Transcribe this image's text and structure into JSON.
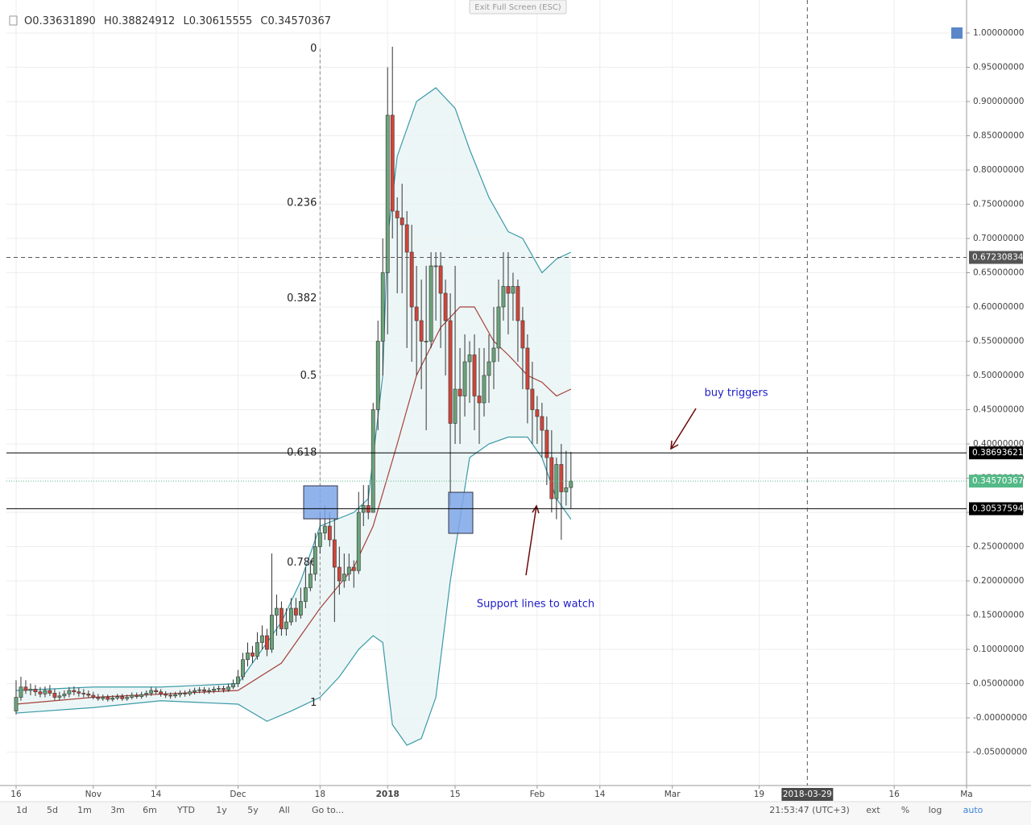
{
  "toolbar_top": {
    "ohlc": [
      {
        "label": "O",
        "value": "0.33631890"
      },
      {
        "label": "H",
        "value": "0.38824912"
      },
      {
        "label": "L",
        "value": "0.30615555"
      },
      {
        "label": "C",
        "value": "0.34570367"
      }
    ],
    "exit": "Exit Full Screen (ESC)"
  },
  "chart_data": {
    "type": "candlestick",
    "x": [
      "2017-10-16",
      "2017-10-17",
      "2017-10-18",
      "2017-10-19",
      "2017-10-20",
      "2017-10-21",
      "2017-10-22",
      "2017-10-23",
      "2017-10-24",
      "2017-10-25",
      "2017-10-26",
      "2017-10-27",
      "2017-10-28",
      "2017-10-29",
      "2017-10-30",
      "2017-10-31",
      "2017-11-01",
      "2017-11-02",
      "2017-11-03",
      "2017-11-04",
      "2017-11-05",
      "2017-11-06",
      "2017-11-07",
      "2017-11-08",
      "2017-11-09",
      "2017-11-10",
      "2017-11-11",
      "2017-11-12",
      "2017-11-13",
      "2017-11-14",
      "2017-11-15",
      "2017-11-16",
      "2017-11-17",
      "2017-11-18",
      "2017-11-19",
      "2017-11-20",
      "2017-11-21",
      "2017-11-22",
      "2017-11-23",
      "2017-11-24",
      "2017-11-25",
      "2017-11-26",
      "2017-11-27",
      "2017-11-28",
      "2017-11-29",
      "2017-11-30",
      "2017-12-01",
      "2017-12-02",
      "2017-12-03",
      "2017-12-04",
      "2017-12-05",
      "2017-12-06",
      "2017-12-07",
      "2017-12-08",
      "2017-12-09",
      "2017-12-10",
      "2017-12-11",
      "2017-12-12",
      "2017-12-13",
      "2017-12-14",
      "2017-12-15",
      "2017-12-16",
      "2017-12-17",
      "2017-12-18",
      "2017-12-19",
      "2017-12-20",
      "2017-12-21",
      "2017-12-22",
      "2017-12-23",
      "2017-12-24",
      "2017-12-25",
      "2017-12-26",
      "2017-12-27",
      "2017-12-28",
      "2017-12-29",
      "2017-12-30",
      "2017-12-31",
      "2018-01-01",
      "2018-01-02",
      "2018-01-03",
      "2018-01-04",
      "2018-01-05",
      "2018-01-06",
      "2018-01-07",
      "2018-01-08",
      "2018-01-09",
      "2018-01-10",
      "2018-01-11",
      "2018-01-12",
      "2018-01-13",
      "2018-01-14",
      "2018-01-15",
      "2018-01-16",
      "2018-01-17",
      "2018-01-18",
      "2018-01-19",
      "2018-01-20",
      "2018-01-21",
      "2018-01-22",
      "2018-01-23",
      "2018-01-24",
      "2018-01-25",
      "2018-01-26",
      "2018-01-27",
      "2018-01-28",
      "2018-01-29",
      "2018-01-30",
      "2018-01-31",
      "2018-02-01",
      "2018-02-02",
      "2018-02-03",
      "2018-02-04",
      "2018-02-05",
      "2018-02-06",
      "2018-02-07",
      "2018-02-08"
    ],
    "open": [
      0.01,
      0.03,
      0.045,
      0.04,
      0.042,
      0.038,
      0.035,
      0.04,
      0.036,
      0.03,
      0.032,
      0.035,
      0.04,
      0.038,
      0.036,
      0.035,
      0.033,
      0.03,
      0.028,
      0.03,
      0.027,
      0.029,
      0.031,
      0.028,
      0.03,
      0.033,
      0.031,
      0.034,
      0.036,
      0.04,
      0.038,
      0.035,
      0.033,
      0.032,
      0.034,
      0.036,
      0.035,
      0.038,
      0.04,
      0.041,
      0.039,
      0.04,
      0.042,
      0.043,
      0.041,
      0.045,
      0.05,
      0.06,
      0.085,
      0.095,
      0.09,
      0.11,
      0.12,
      0.1,
      0.15,
      0.16,
      0.13,
      0.14,
      0.16,
      0.15,
      0.17,
      0.19,
      0.21,
      0.25,
      0.27,
      0.28,
      0.26,
      0.22,
      0.2,
      0.21,
      0.22,
      0.215,
      0.3,
      0.31,
      0.3,
      0.45,
      0.55,
      0.65,
      0.88,
      0.74,
      0.73,
      0.72,
      0.68,
      0.6,
      0.58,
      0.55,
      0.55,
      0.66,
      0.66,
      0.62,
      0.58,
      0.43,
      0.48,
      0.47,
      0.52,
      0.53,
      0.47,
      0.46,
      0.5,
      0.52,
      0.54,
      0.6,
      0.63,
      0.62,
      0.63,
      0.58,
      0.54,
      0.48,
      0.45,
      0.44,
      0.42,
      0.38,
      0.32,
      0.37,
      0.33,
      0.3363189
    ],
    "high": [
      0.055,
      0.06,
      0.055,
      0.05,
      0.048,
      0.045,
      0.046,
      0.048,
      0.042,
      0.038,
      0.04,
      0.045,
      0.046,
      0.044,
      0.042,
      0.04,
      0.038,
      0.035,
      0.034,
      0.034,
      0.033,
      0.035,
      0.035,
      0.034,
      0.037,
      0.037,
      0.038,
      0.04,
      0.045,
      0.044,
      0.042,
      0.039,
      0.037,
      0.038,
      0.04,
      0.04,
      0.042,
      0.044,
      0.045,
      0.045,
      0.044,
      0.046,
      0.047,
      0.047,
      0.05,
      0.056,
      0.07,
      0.095,
      0.11,
      0.105,
      0.125,
      0.135,
      0.13,
      0.24,
      0.18,
      0.17,
      0.16,
      0.175,
      0.175,
      0.19,
      0.22,
      0.23,
      0.27,
      0.3,
      0.31,
      0.3,
      0.29,
      0.25,
      0.24,
      0.24,
      0.23,
      0.33,
      0.34,
      0.34,
      0.46,
      0.58,
      0.7,
      0.95,
      0.98,
      0.76,
      0.78,
      0.74,
      0.72,
      0.66,
      0.64,
      0.66,
      0.68,
      0.68,
      0.68,
      0.64,
      0.62,
      0.66,
      0.54,
      0.56,
      0.55,
      0.56,
      0.54,
      0.54,
      0.56,
      0.6,
      0.64,
      0.68,
      0.68,
      0.65,
      0.64,
      0.6,
      0.56,
      0.52,
      0.47,
      0.46,
      0.44,
      0.42,
      0.38,
      0.4,
      0.39,
      0.38824912
    ],
    "low": [
      0.005,
      0.025,
      0.035,
      0.033,
      0.032,
      0.03,
      0.03,
      0.032,
      0.026,
      0.026,
      0.028,
      0.03,
      0.033,
      0.031,
      0.03,
      0.029,
      0.027,
      0.025,
      0.025,
      0.024,
      0.024,
      0.026,
      0.025,
      0.025,
      0.027,
      0.028,
      0.028,
      0.03,
      0.032,
      0.034,
      0.031,
      0.029,
      0.028,
      0.029,
      0.03,
      0.031,
      0.032,
      0.034,
      0.036,
      0.035,
      0.035,
      0.036,
      0.038,
      0.037,
      0.038,
      0.042,
      0.045,
      0.055,
      0.075,
      0.08,
      0.085,
      0.1,
      0.09,
      0.095,
      0.12,
      0.12,
      0.12,
      0.135,
      0.14,
      0.145,
      0.16,
      0.185,
      0.2,
      0.24,
      0.26,
      0.25,
      0.14,
      0.18,
      0.19,
      0.2,
      0.19,
      0.21,
      0.28,
      0.29,
      0.3,
      0.42,
      0.5,
      0.56,
      0.7,
      0.62,
      0.62,
      0.54,
      0.52,
      0.5,
      0.48,
      0.42,
      0.54,
      0.58,
      0.54,
      0.5,
      0.31,
      0.4,
      0.4,
      0.44,
      0.46,
      0.42,
      0.4,
      0.44,
      0.46,
      0.48,
      0.52,
      0.58,
      0.56,
      0.58,
      0.52,
      0.48,
      0.43,
      0.4,
      0.4,
      0.38,
      0.34,
      0.3,
      0.29,
      0.26,
      0.31,
      0.30615555
    ],
    "close": [
      0.03,
      0.045,
      0.04,
      0.042,
      0.038,
      0.035,
      0.04,
      0.036,
      0.03,
      0.032,
      0.035,
      0.04,
      0.038,
      0.036,
      0.035,
      0.033,
      0.03,
      0.028,
      0.03,
      0.027,
      0.029,
      0.031,
      0.028,
      0.03,
      0.033,
      0.031,
      0.034,
      0.036,
      0.04,
      0.038,
      0.035,
      0.033,
      0.032,
      0.034,
      0.036,
      0.035,
      0.038,
      0.04,
      0.041,
      0.039,
      0.04,
      0.042,
      0.043,
      0.041,
      0.045,
      0.05,
      0.06,
      0.085,
      0.095,
      0.09,
      0.11,
      0.12,
      0.1,
      0.15,
      0.16,
      0.13,
      0.14,
      0.16,
      0.15,
      0.17,
      0.19,
      0.21,
      0.25,
      0.27,
      0.28,
      0.26,
      0.22,
      0.2,
      0.21,
      0.22,
      0.215,
      0.3,
      0.31,
      0.3,
      0.45,
      0.55,
      0.65,
      0.88,
      0.74,
      0.73,
      0.72,
      0.68,
      0.6,
      0.58,
      0.55,
      0.55,
      0.66,
      0.66,
      0.62,
      0.58,
      0.43,
      0.48,
      0.47,
      0.52,
      0.53,
      0.47,
      0.46,
      0.5,
      0.52,
      0.54,
      0.6,
      0.63,
      0.62,
      0.63,
      0.58,
      0.54,
      0.48,
      0.45,
      0.44,
      0.42,
      0.38,
      0.32,
      0.37,
      0.33,
      0.336,
      0.34570367
    ],
    "up_color": "#6aa37a",
    "down_color": "#d0453a",
    "series": [
      {
        "color": "#3a9aa8",
        "x": [
          "2017-10-16",
          "2017-11-01",
          "2017-11-15",
          "2017-12-01",
          "2017-12-05",
          "2017-12-10",
          "2017-12-14",
          "2017-12-18",
          "2017-12-25",
          "2017-12-28",
          "2017-12-31",
          "2018-01-01",
          "2018-01-03",
          "2018-01-07",
          "2018-01-11",
          "2018-01-15",
          "2018-01-18",
          "2018-01-22",
          "2018-01-26",
          "2018-01-29",
          "2018-02-02",
          "2018-02-05",
          "2018-02-08"
        ],
        "values": [
          0.04,
          0.045,
          0.045,
          0.05,
          0.09,
          0.14,
          0.2,
          0.28,
          0.3,
          0.32,
          0.5,
          0.7,
          0.82,
          0.9,
          0.92,
          0.89,
          0.83,
          0.76,
          0.71,
          0.7,
          0.65,
          0.67,
          0.68
        ]
      },
      {
        "color": "#3a9aa8",
        "x": [
          "2017-10-16",
          "2017-11-01",
          "2017-11-15",
          "2017-12-01",
          "2017-12-07",
          "2017-12-12",
          "2017-12-18",
          "2017-12-22",
          "2017-12-26",
          "2017-12-29",
          "2017-12-31",
          "2018-01-02",
          "2018-01-05",
          "2018-01-08",
          "2018-01-11",
          "2018-01-14",
          "2018-01-18",
          "2018-01-22",
          "2018-01-26",
          "2018-01-30",
          "2018-02-02",
          "2018-02-05",
          "2018-02-08"
        ],
        "values": [
          0.007,
          0.015,
          0.025,
          0.02,
          -0.005,
          0.01,
          0.03,
          0.06,
          0.1,
          0.12,
          0.11,
          -0.01,
          -0.04,
          -0.03,
          0.03,
          0.2,
          0.38,
          0.4,
          0.41,
          0.41,
          0.38,
          0.32,
          0.29
        ]
      },
      {
        "color": "#a5413c",
        "x": [
          "2017-10-16",
          "2017-11-01",
          "2017-12-01",
          "2017-12-10",
          "2017-12-18",
          "2017-12-25",
          "2017-12-29",
          "2018-01-03",
          "2018-01-07",
          "2018-01-12",
          "2018-01-16",
          "2018-01-19",
          "2018-01-23",
          "2018-01-26",
          "2018-01-30",
          "2018-02-02",
          "2018-02-05",
          "2018-02-08"
        ],
        "values": [
          0.02,
          0.03,
          0.04,
          0.08,
          0.16,
          0.22,
          0.28,
          0.4,
          0.5,
          0.57,
          0.6,
          0.6,
          0.55,
          0.53,
          0.5,
          0.49,
          0.47,
          0.48
        ]
      }
    ],
    "band_fill": "#e8f4f4",
    "xlim": [
      "2017-10-14",
      "2018-05-01"
    ],
    "xticks": [
      {
        "value": "2017-10-16",
        "label": "16"
      },
      {
        "value": "2017-11-01",
        "label": "Nov"
      },
      {
        "value": "2017-11-14",
        "label": "14"
      },
      {
        "value": "2017-12-01",
        "label": "Dec"
      },
      {
        "value": "2017-12-18",
        "label": "18"
      },
      {
        "value": "2018-01-01",
        "label": "2018"
      },
      {
        "value": "2018-01-15",
        "label": "15"
      },
      {
        "value": "2018-02-01",
        "label": "Feb"
      },
      {
        "value": "2018-02-14",
        "label": "14"
      },
      {
        "value": "2018-03-01",
        "label": "Mar"
      },
      {
        "value": "2018-03-19",
        "label": "19"
      },
      {
        "value": "2018-04-16",
        "label": "16"
      },
      {
        "value": "2018-05-01",
        "label": "Ma"
      }
    ],
    "ylim": [
      -0.0988,
      1.0482
    ],
    "yticks": [
      {
        "value": 1,
        "label": "1.00000000"
      },
      {
        "value": 0.95,
        "label": "0.95000000"
      },
      {
        "value": 0.9,
        "label": "0.90000000"
      },
      {
        "value": 0.85,
        "label": "0.85000000"
      },
      {
        "value": 0.8,
        "label": "0.80000000"
      },
      {
        "value": 0.75,
        "label": "0.75000000"
      },
      {
        "value": 0.7,
        "label": "0.70000000"
      },
      {
        "value": 0.65,
        "label": "0.65000000"
      },
      {
        "value": 0.6,
        "label": "0.60000000"
      },
      {
        "value": 0.55,
        "label": "0.55000000"
      },
      {
        "value": 0.5,
        "label": "0.50000000"
      },
      {
        "value": 0.45,
        "label": "0.45000000"
      },
      {
        "value": 0.4,
        "label": "0.40000000"
      },
      {
        "value": 0.35,
        "label": "0.35000000"
      },
      {
        "value": 0.3,
        "label": "0.30000000"
      },
      {
        "value": 0.25,
        "label": "0.25000000"
      },
      {
        "value": 0.2,
        "label": "0.20000000"
      },
      {
        "value": 0.15,
        "label": "0.15000000"
      },
      {
        "value": 0.1,
        "label": "0.10000000"
      },
      {
        "value": 0.05,
        "label": "0.05000000"
      },
      {
        "value": 0,
        "label": "-0.00000000"
      },
      {
        "value": -0.05,
        "label": "-0.05000000"
      }
    ],
    "grid": true,
    "fib": {
      "date": "2017-12-18",
      "high": 0.977,
      "low": 0.022,
      "levels": [
        0,
        0.236,
        0.382,
        0.5,
        0.618,
        0.786,
        1
      ]
    },
    "hlines": [
      {
        "value": 0.67230834,
        "style": "crosshair",
        "color": "#555555"
      },
      {
        "value": 0.38693621,
        "style": "solid",
        "color": "#000000"
      },
      {
        "value": 0.34570367,
        "style": "current",
        "color": "#53b987"
      },
      {
        "value": 0.30537594,
        "style": "solid",
        "color": "#000000"
      }
    ],
    "cursor_date": "2018-03-29",
    "annotations": [
      {
        "text": "buy triggers"
      },
      {
        "text": "Support lines to watch"
      }
    ]
  },
  "bottom_toolbar": {
    "ranges": [
      "1d",
      "5d",
      "1m",
      "3m",
      "6m",
      "YTD",
      "1y",
      "5y",
      "All"
    ],
    "goto": "Go to...",
    "time": "21:53:47 (UTC+3)",
    "options": [
      "ext",
      "%",
      "log",
      "auto"
    ]
  }
}
